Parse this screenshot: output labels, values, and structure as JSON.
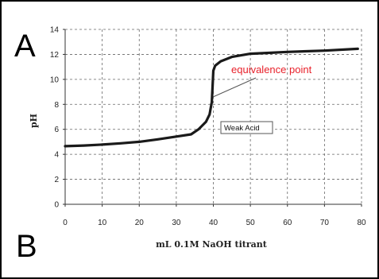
{
  "panel_labels": {
    "top": "A",
    "bottom": "B"
  },
  "chart_data": {
    "type": "line",
    "xlabel": "mL 0.1M NaOH titrant",
    "ylabel": "pH",
    "xlim": [
      0,
      80
    ],
    "ylim": [
      0,
      14
    ],
    "xticks": [
      0,
      10,
      20,
      30,
      40,
      50,
      60,
      70,
      80
    ],
    "yticks": [
      0,
      2,
      4,
      6,
      8,
      10,
      12,
      14
    ],
    "grid": true,
    "legend": {
      "label": "Weak Acid",
      "placement": "center-right"
    },
    "annotation": {
      "text": "equivalence point",
      "color": "#e8202a"
    },
    "series": [
      {
        "name": "Weak Acid",
        "color": "#1a1a1a",
        "x": [
          0,
          5,
          10,
          15,
          20,
          25,
          30,
          34,
          36,
          38,
          39,
          39.6,
          40,
          40.5,
          42,
          45,
          50,
          55,
          60,
          70,
          79
        ],
        "y": [
          4.65,
          4.7,
          4.78,
          4.88,
          5.0,
          5.2,
          5.42,
          5.6,
          6.0,
          6.6,
          7.2,
          8.2,
          10.7,
          11.1,
          11.45,
          11.8,
          12.05,
          12.12,
          12.2,
          12.3,
          12.45
        ]
      }
    ]
  }
}
